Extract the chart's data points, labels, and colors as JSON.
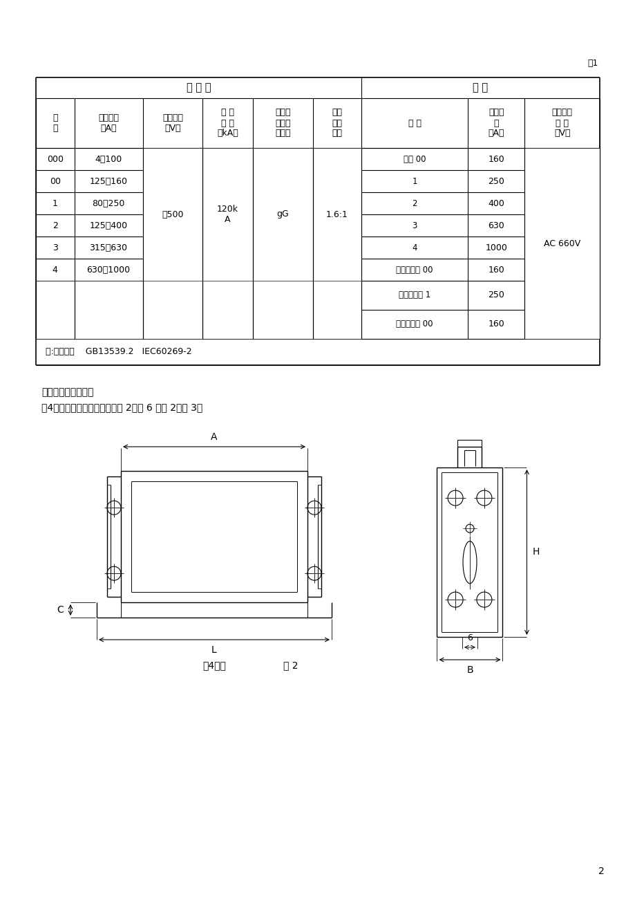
{
  "title_label": "表1",
  "col_headers": [
    "尺\n码",
    "额定电流\n（A）",
    "额定电压\n（V）",
    "分 断\n能 力\n（kA）",
    "分断范\n围与使\n用类别",
    "过电\n流选\n择比",
    "尺 码",
    "额定电\n流\n（A）",
    "额定绝缘\n电 压\n（V）"
  ],
  "fuse_header": "煙4 断 体",
  "base_header": "底 座",
  "table_data_col01": [
    [
      "000",
      "4～100"
    ],
    [
      "00",
      "125、160"
    ],
    [
      "1",
      "80～250"
    ],
    [
      "2",
      "125～400"
    ],
    [
      "3",
      "315～630"
    ],
    [
      "4",
      "630～1000"
    ],
    [
      "",
      ""
    ],
    [
      "",
      ""
    ]
  ],
  "merged_col2": "～500",
  "merged_col3": "120k\nA",
  "merged_col4": "gG",
  "merged_col5": "1.6:1",
  "merged_col8": "AC 660V",
  "table_data_col67": [
    [
      "单极 00",
      "160"
    ],
    [
      "1",
      "250"
    ],
    [
      "2",
      "400"
    ],
    [
      "3",
      "630"
    ],
    [
      "4",
      "1000"
    ],
    [
      "三极并列式 00",
      "160"
    ],
    [
      "三极并列式 1",
      "250"
    ],
    [
      "三极直列式 00",
      "160"
    ]
  ],
  "note_text": "注:符合标准    GB13539.2   IEC60269-2",
  "section_title": "五、外形及安装尺寸",
  "section_body": "煙4断器的外形及安装尺寸见图 2～图 6 及表 2、表 3。",
  "caption_left": "煙4断体",
  "caption_fig2": "图 2",
  "page_number": "2",
  "bg_color": "#ffffff"
}
